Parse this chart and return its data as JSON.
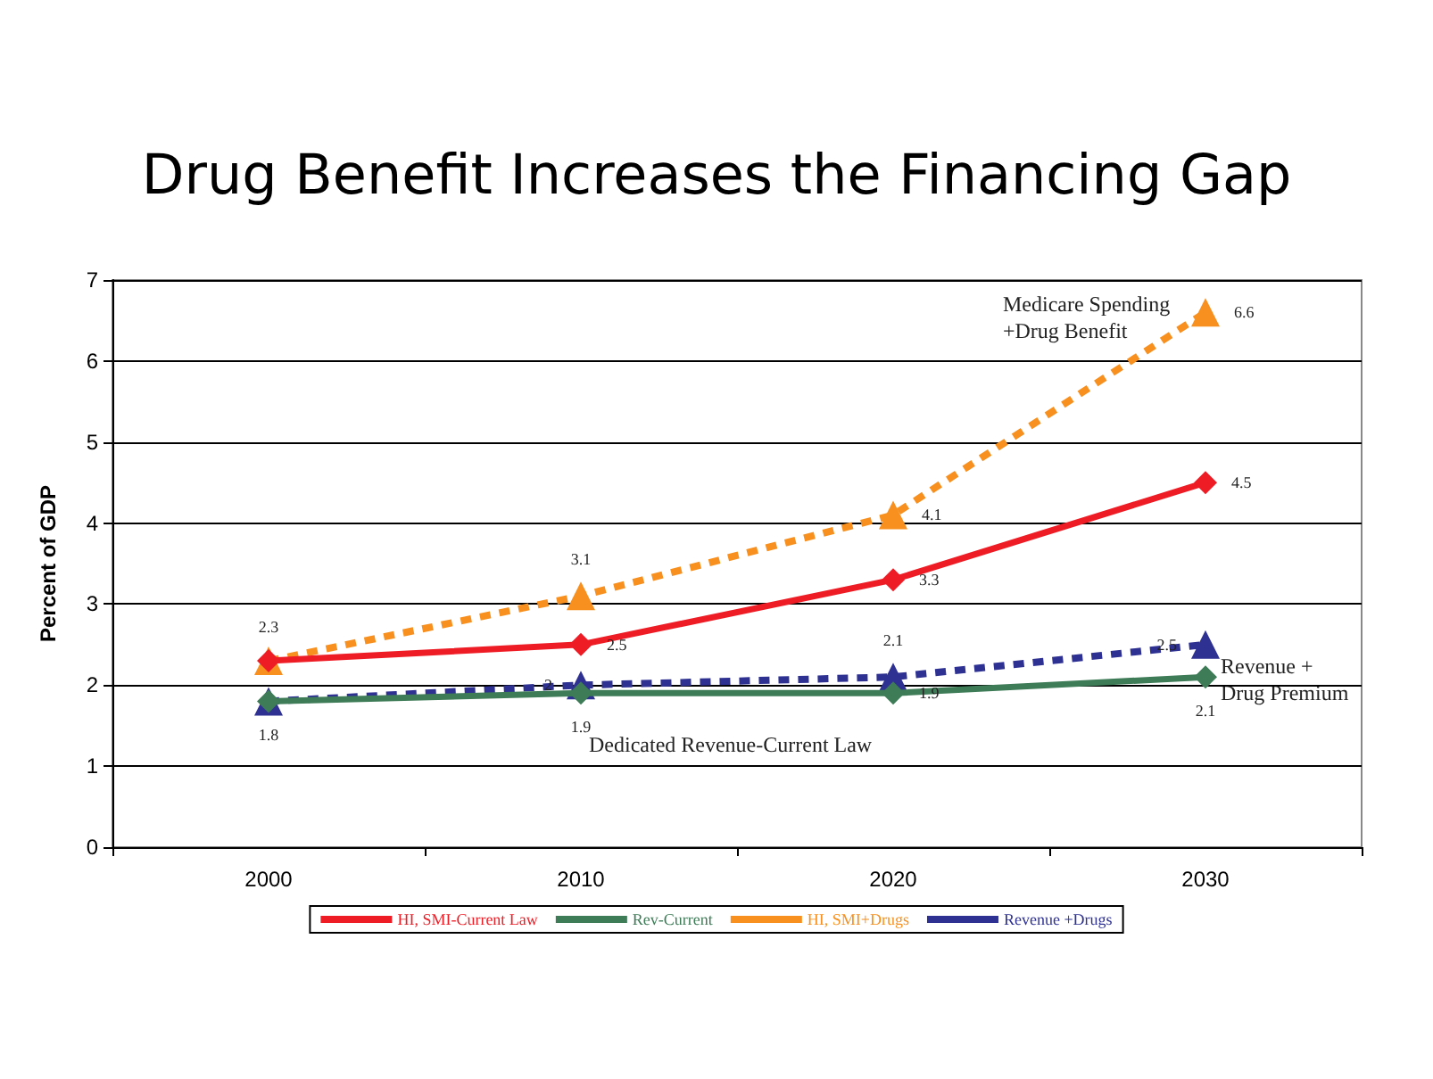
{
  "chart_data": {
    "type": "line",
    "title": "Drug Benefit Increases the Financing Gap",
    "ylabel": "Percent of GDP",
    "categories": [
      "2000",
      "2010",
      "2020",
      "2030"
    ],
    "series": [
      {
        "name": "HI, SMI-Current Law",
        "color": "#ee1c25",
        "values": [
          2.3,
          2.5,
          3.3,
          4.5
        ],
        "marker": "diamond",
        "line_style": "solid",
        "value_labels": [
          "2.3",
          "2.5",
          "3.3",
          "4.5"
        ]
      },
      {
        "name": "Rev-Current",
        "color": "#3e7b57",
        "values": [
          1.8,
          1.9,
          1.9,
          2.1
        ],
        "marker": "diamond",
        "line_style": "solid",
        "value_labels": [
          "1.8",
          "1.9",
          "1.9",
          "2.1"
        ]
      },
      {
        "name": "HI, SMI+Drugs",
        "color": "#f7901e",
        "values": [
          2.3,
          3.1,
          4.1,
          6.6
        ],
        "marker": "triangle",
        "line_style": "dashed",
        "value_labels": [
          null,
          "3.1",
          "4.1",
          "6.6"
        ]
      },
      {
        "name": "Revenue +Drugs",
        "color": "#2e3192",
        "values": [
          1.8,
          2,
          2.1,
          2.5
        ],
        "marker": "triangle",
        "line_style": "dashed",
        "value_labels": [
          null,
          "2",
          "2.1",
          "2.5"
        ]
      }
    ],
    "ylim": [
      0,
      7
    ],
    "yticks": [
      0,
      1,
      2,
      3,
      4,
      5,
      6,
      7
    ],
    "grid": "y",
    "legend": "bottom",
    "annotations": [
      "Medicare Spending\n+Drug Benefit",
      "Revenue +\nDrug Premium",
      "Dedicated Revenue-Current Law"
    ]
  }
}
